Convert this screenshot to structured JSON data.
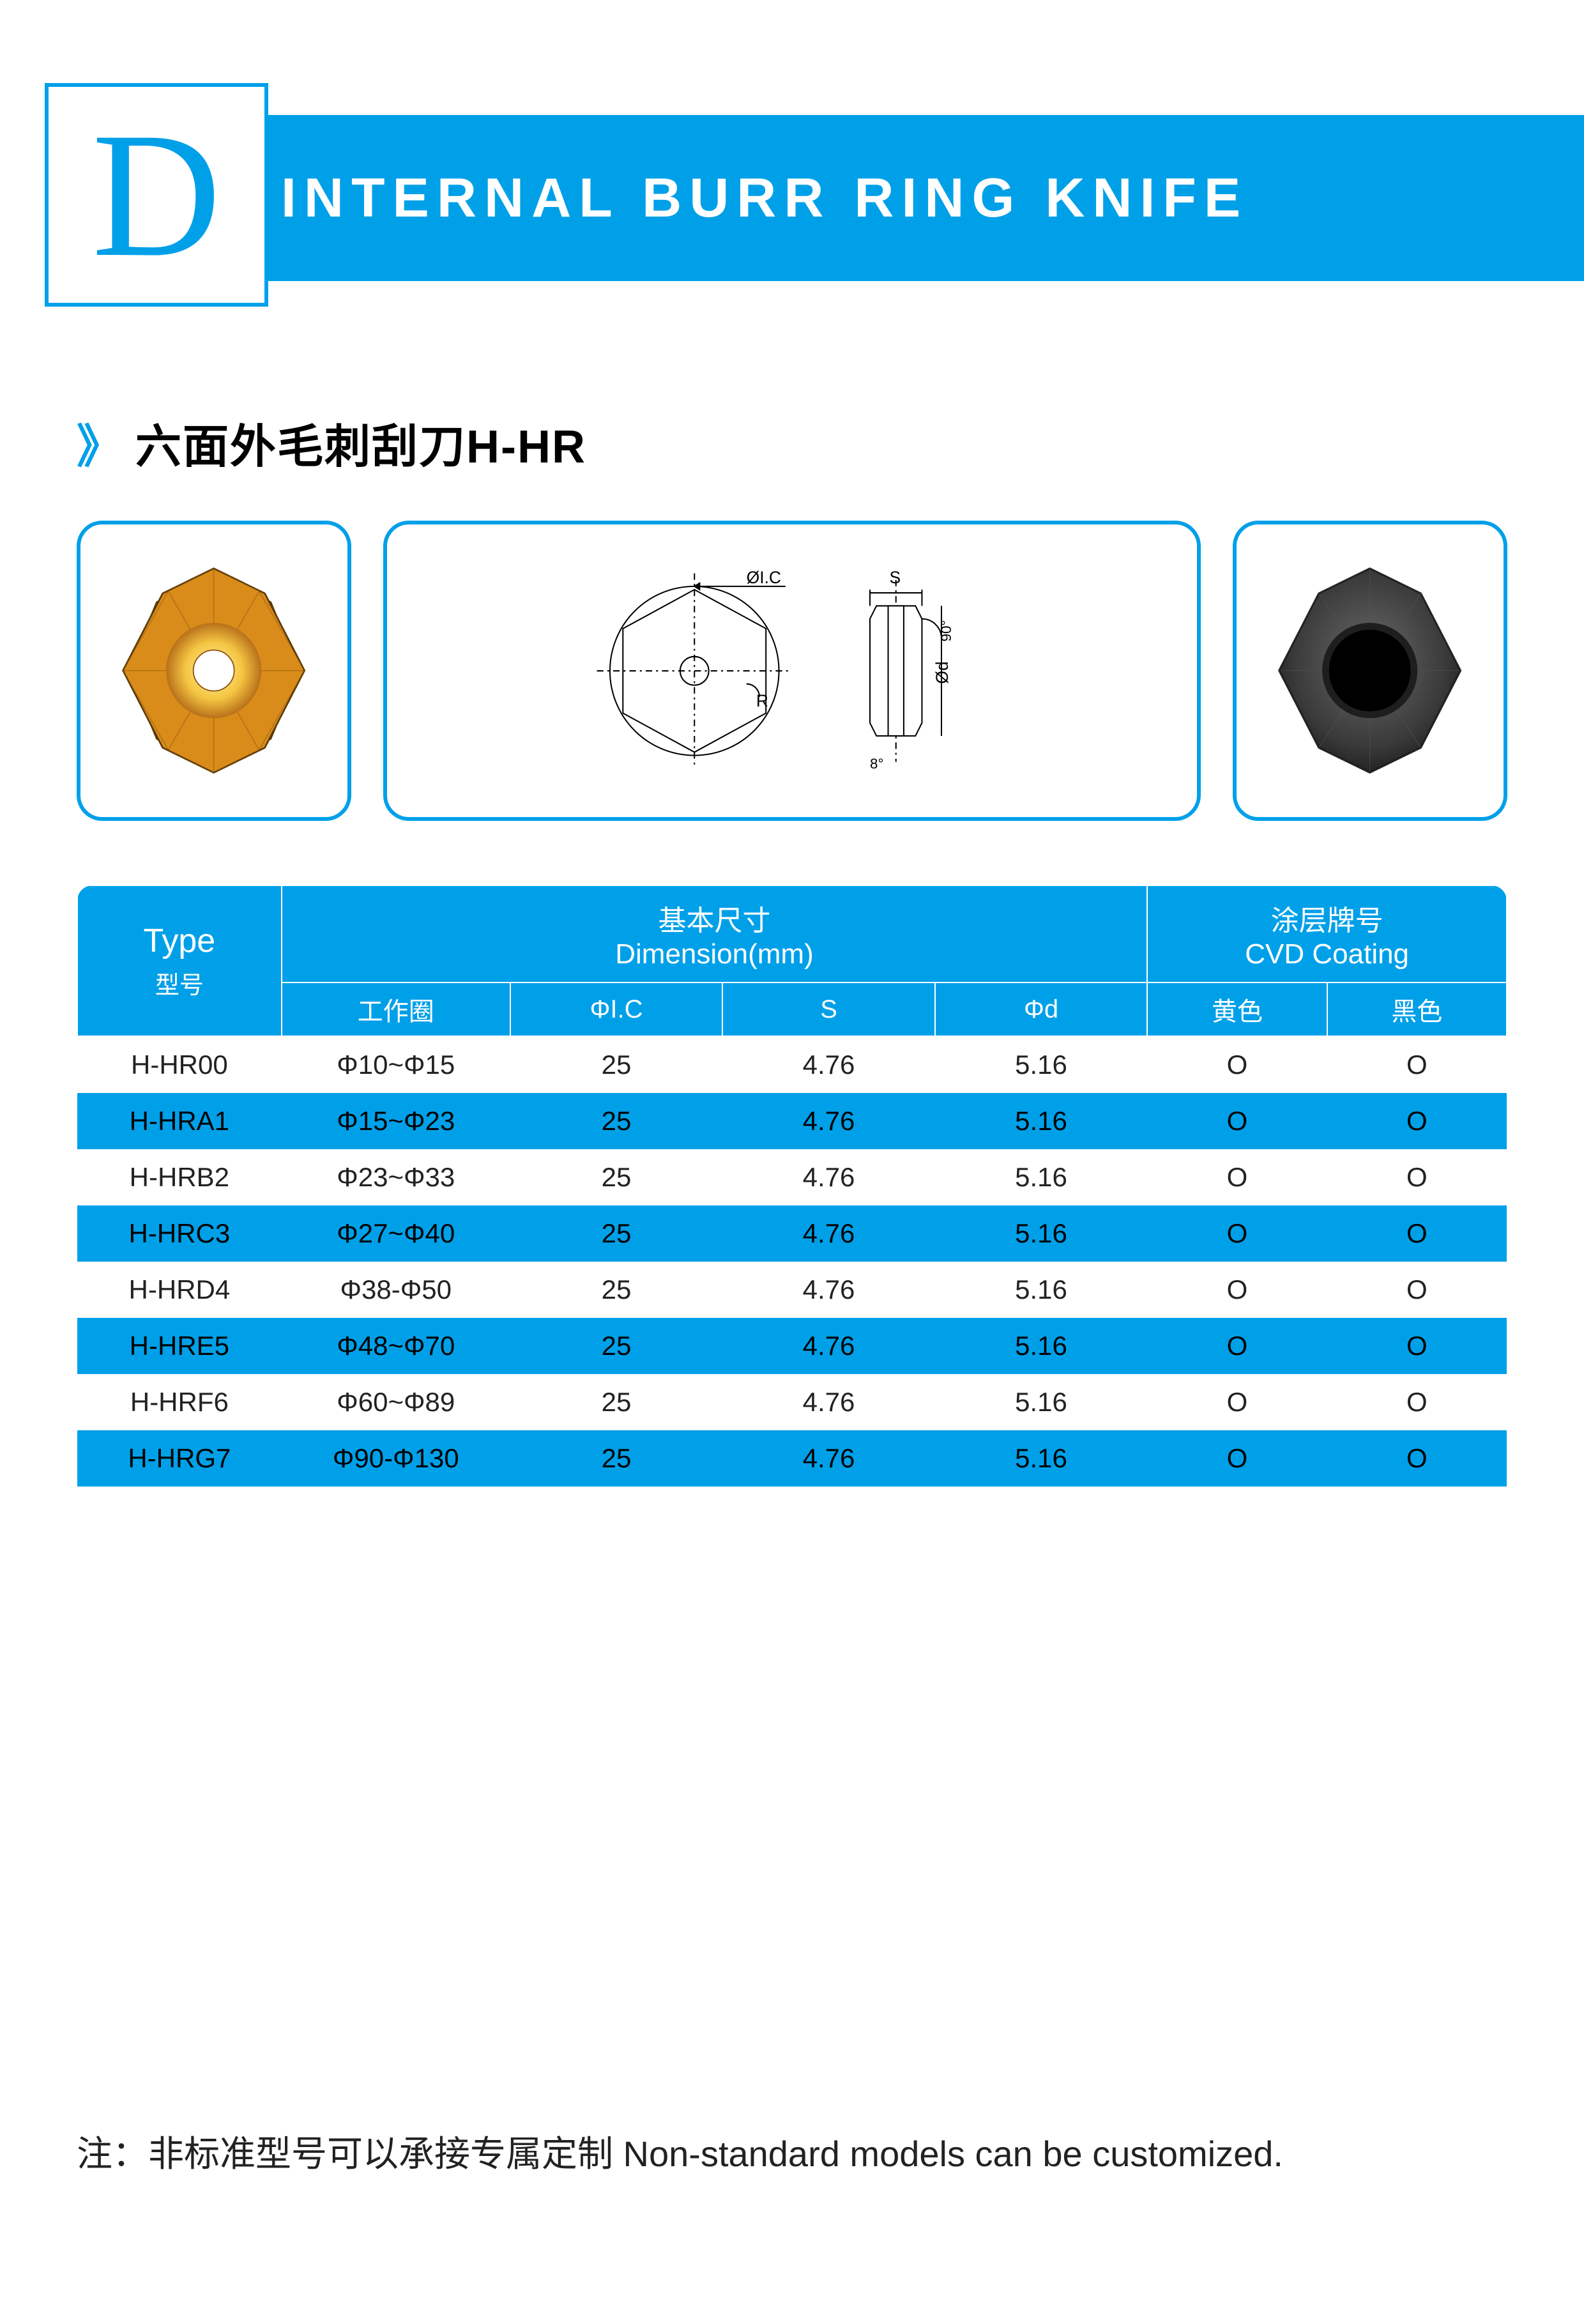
{
  "header": {
    "letter": "D",
    "title": "INTERNAL BURR RING KNIFE"
  },
  "section": {
    "chevron": "》",
    "title": "六面外毛刺刮刀H-HR"
  },
  "images": {
    "box1": {
      "type": "hexagon-star",
      "fill_color": "#d98c1a",
      "inner_ring_color": "#f5c542",
      "center_hole_color": "#ffffff",
      "outline_color": "#5a3a0a"
    },
    "box2": {
      "type": "technical-diagram",
      "labels": {
        "ic": "ØI.C",
        "r": "R",
        "s": "S",
        "d": "Ød",
        "angle": "90°",
        "bottom_angle": "8°"
      },
      "line_color": "#000000",
      "line_width": 2
    },
    "box3": {
      "type": "hexagon-star",
      "fill_color": "#3a3a3a",
      "center_hole_color": "#000000",
      "outline_color": "#1a1a1a"
    }
  },
  "table": {
    "headers": {
      "type_main": "Type",
      "type_sub": "型号",
      "dim_main": "基本尺寸",
      "dim_sub": "Dimension(mm)",
      "coat_main": "涂层牌号",
      "coat_sub": "CVD Coating",
      "sub_work": "工作圈",
      "sub_ic": "ΦI.C",
      "sub_s": "S",
      "sub_d": "Φd",
      "sub_yellow": "黄色",
      "sub_black": "黑色"
    },
    "rows": [
      {
        "type": "H-HR00",
        "work": "Φ10~Φ15",
        "ic": "25",
        "s": "4.76",
        "d": "5.16",
        "yellow": "O",
        "black": "O"
      },
      {
        "type": "H-HRA1",
        "work": "Φ15~Φ23",
        "ic": "25",
        "s": "4.76",
        "d": "5.16",
        "yellow": "O",
        "black": "O"
      },
      {
        "type": "H-HRB2",
        "work": "Φ23~Φ33",
        "ic": "25",
        "s": "4.76",
        "d": "5.16",
        "yellow": "O",
        "black": "O"
      },
      {
        "type": "H-HRC3",
        "work": "Φ27~Φ40",
        "ic": "25",
        "s": "4.76",
        "d": "5.16",
        "yellow": "O",
        "black": "O"
      },
      {
        "type": "H-HRD4",
        "work": "Φ38-Φ50",
        "ic": "25",
        "s": "4.76",
        "d": "5.16",
        "yellow": "O",
        "black": "O"
      },
      {
        "type": "H-HRE5",
        "work": "Φ48~Φ70",
        "ic": "25",
        "s": "4.76",
        "d": "5.16",
        "yellow": "O",
        "black": "O"
      },
      {
        "type": "H-HRF6",
        "work": "Φ60~Φ89",
        "ic": "25",
        "s": "4.76",
        "d": "5.16",
        "yellow": "O",
        "black": "O"
      },
      {
        "type": "H-HRG7",
        "work": "Φ90-Φ130",
        "ic": "25",
        "s": "4.76",
        "d": "5.16",
        "yellow": "O",
        "black": "O"
      }
    ],
    "row_colors": {
      "odd_bg": "#ffffff",
      "even_bg": "#00a0e9",
      "header_bg": "#00a0e9",
      "header_fg": "#ffffff"
    }
  },
  "footnote": "注：非标准型号可以承接专属定制 Non-standard models can be customized."
}
